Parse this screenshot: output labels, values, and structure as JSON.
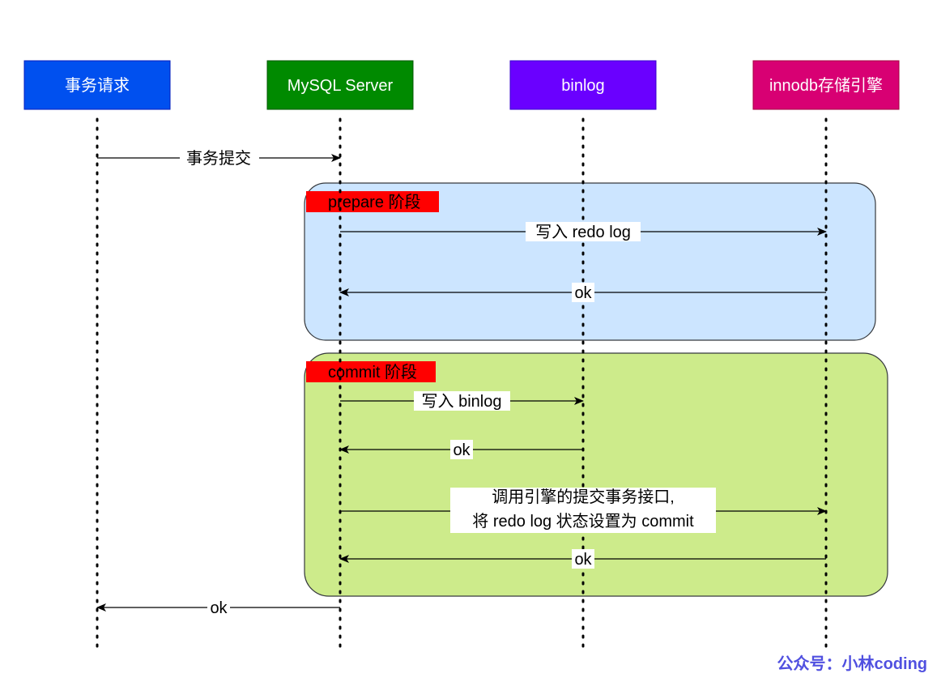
{
  "participants": [
    {
      "label": "事务请求",
      "color": "#0050ef"
    },
    {
      "label": "MySQL Server",
      "color": "#008a00"
    },
    {
      "label": "binlog",
      "color": "#6a00ff"
    },
    {
      "label": "innodb存储引擎",
      "color": "#d80073"
    }
  ],
  "groups": {
    "prepare": {
      "label": "prepare 阶段",
      "color": "#cce5ff"
    },
    "commit": {
      "label": "commit 阶段",
      "color": "#cdeb8b"
    },
    "label_color": "#ff0000"
  },
  "messages": [
    {
      "from": "事务请求",
      "to": "MySQL Server",
      "label": "事务提交"
    },
    {
      "from": "MySQL Server",
      "to": "innodb存储引擎",
      "label": "写入 redo log"
    },
    {
      "from": "innodb存储引擎",
      "to": "MySQL Server",
      "label": "ok"
    },
    {
      "from": "MySQL Server",
      "to": "binlog",
      "label": "写入 binlog"
    },
    {
      "from": "binlog",
      "to": "MySQL Server",
      "label": "ok"
    },
    {
      "from": "MySQL Server",
      "to": "innodb存储引擎",
      "label_line1": "调用引擎的提交事务接口,",
      "label_line2": "将 redo log 状态设置为 commit"
    },
    {
      "from": "innodb存储引擎",
      "to": "MySQL Server",
      "label": "ok"
    },
    {
      "from": "MySQL Server",
      "to": "事务请求",
      "label": "ok"
    }
  ],
  "watermark": "公众号：小林coding"
}
